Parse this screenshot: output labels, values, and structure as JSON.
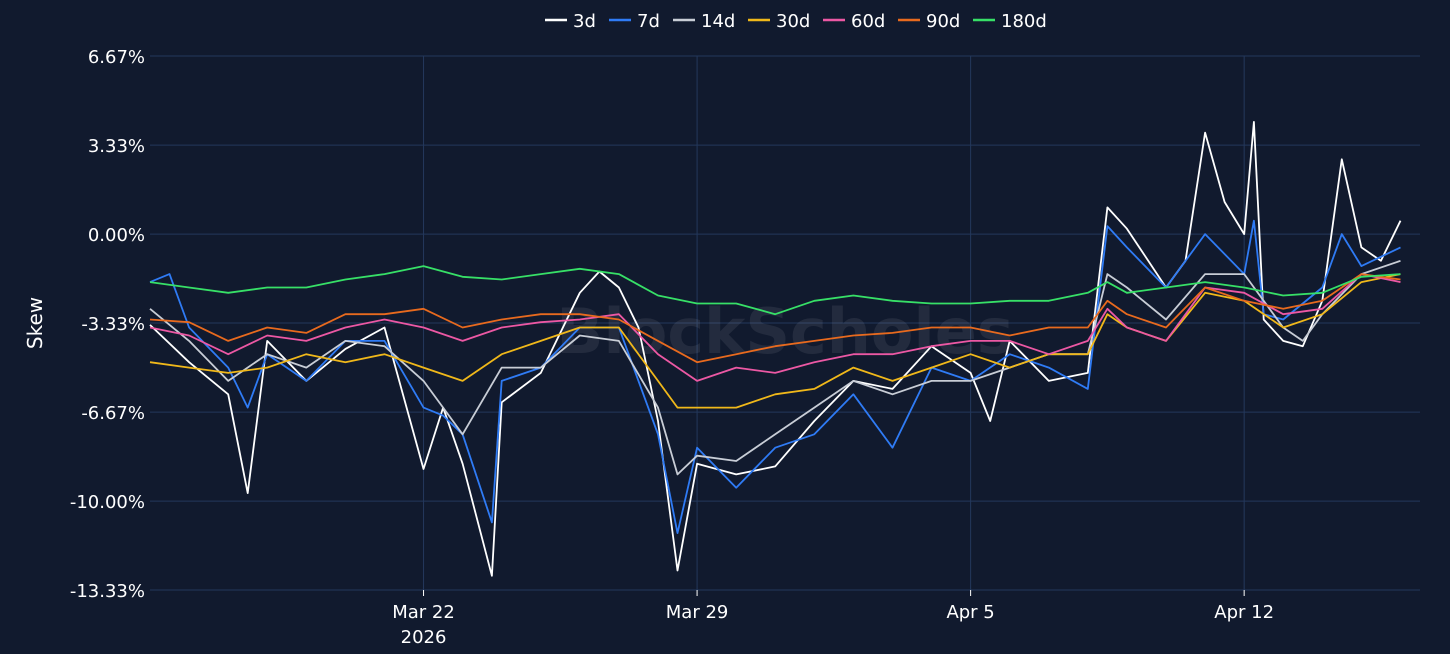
{
  "chart_data": {
    "type": "line",
    "title": "",
    "ylabel": "Skew",
    "xlabel": "",
    "ylim": [
      -13.33,
      6.67
    ],
    "y_ticks": [
      6.67,
      3.33,
      0.0,
      -3.33,
      -6.67,
      -10.0,
      -13.33
    ],
    "y_tick_labels": [
      "6.67%",
      "3.33%",
      "0.00%",
      "-3.33%",
      "-6.67%",
      "-10.00%",
      "-13.33%"
    ],
    "x_range": [
      "2026-03-15",
      "2026-04-16"
    ],
    "x_ticks": [
      {
        "date": "2026-03-22",
        "label": "Mar 22",
        "sublabel": "2026"
      },
      {
        "date": "2026-03-29",
        "label": "Mar 29",
        "sublabel": ""
      },
      {
        "date": "2026-04-05",
        "label": "Apr 5",
        "sublabel": ""
      },
      {
        "date": "2026-04-12",
        "label": "Apr 12",
        "sublabel": ""
      }
    ],
    "grid": true,
    "legend_position": "top-center",
    "watermark": "BlockScholes",
    "colors": {
      "background": "#111a2e",
      "grid": "#24385c",
      "text": "#ffffff"
    },
    "series": [
      {
        "name": "3d",
        "color": "#ffffff",
        "points": [
          [
            "2026-03-15",
            -3.4
          ],
          [
            "2026-03-16",
            -4.8
          ],
          [
            "2026-03-17",
            -6.0
          ],
          [
            "2026-03-17T12:00",
            -9.7
          ],
          [
            "2026-03-18",
            -4.0
          ],
          [
            "2026-03-19",
            -5.5
          ],
          [
            "2026-03-20",
            -4.3
          ],
          [
            "2026-03-21",
            -3.5
          ],
          [
            "2026-03-22",
            -8.8
          ],
          [
            "2026-03-22T12:00",
            -6.5
          ],
          [
            "2026-03-23",
            -8.6
          ],
          [
            "2026-03-23T18:00",
            -12.8
          ],
          [
            "2026-03-24",
            -6.3
          ],
          [
            "2026-03-25",
            -5.2
          ],
          [
            "2026-03-26",
            -2.2
          ],
          [
            "2026-03-26T12:00",
            -1.4
          ],
          [
            "2026-03-27",
            -2.0
          ],
          [
            "2026-03-27T12:00",
            -3.5
          ],
          [
            "2026-03-28",
            -7.0
          ],
          [
            "2026-03-28T12:00",
            -12.6
          ],
          [
            "2026-03-29",
            -8.6
          ],
          [
            "2026-03-30",
            -9.0
          ],
          [
            "2026-03-31",
            -8.7
          ],
          [
            "2026-04-01",
            -7.0
          ],
          [
            "2026-04-02",
            -5.5
          ],
          [
            "2026-04-03",
            -5.8
          ],
          [
            "2026-04-04",
            -4.2
          ],
          [
            "2026-04-05",
            -5.2
          ],
          [
            "2026-04-05T12:00",
            -7.0
          ],
          [
            "2026-04-06",
            -4.0
          ],
          [
            "2026-04-07",
            -5.5
          ],
          [
            "2026-04-08",
            -5.2
          ],
          [
            "2026-04-08T12:00",
            1.0
          ],
          [
            "2026-04-09",
            0.2
          ],
          [
            "2026-04-10",
            -2.0
          ],
          [
            "2026-04-10T12:00",
            -1.0
          ],
          [
            "2026-04-11",
            3.8
          ],
          [
            "2026-04-11T12:00",
            1.2
          ],
          [
            "2026-04-12",
            0.0
          ],
          [
            "2026-04-12T06:00",
            4.2
          ],
          [
            "2026-04-12T12:00",
            -3.2
          ],
          [
            "2026-04-13",
            -4.0
          ],
          [
            "2026-04-13T12:00",
            -4.2
          ],
          [
            "2026-04-14",
            -2.5
          ],
          [
            "2026-04-14T12:00",
            2.8
          ],
          [
            "2026-04-15",
            -0.5
          ],
          [
            "2026-04-15T12:00",
            -1.0
          ],
          [
            "2026-04-16",
            0.5
          ]
        ]
      },
      {
        "name": "7d",
        "color": "#2f7bf5",
        "points": [
          [
            "2026-03-15",
            -1.8
          ],
          [
            "2026-03-15T12:00",
            -1.5
          ],
          [
            "2026-03-16",
            -3.5
          ],
          [
            "2026-03-17",
            -5.0
          ],
          [
            "2026-03-17T12:00",
            -6.5
          ],
          [
            "2026-03-18",
            -4.5
          ],
          [
            "2026-03-19",
            -5.5
          ],
          [
            "2026-03-20",
            -4.0
          ],
          [
            "2026-03-21",
            -4.0
          ],
          [
            "2026-03-22",
            -6.5
          ],
          [
            "2026-03-22T12:00",
            -6.8
          ],
          [
            "2026-03-23",
            -7.5
          ],
          [
            "2026-03-23T18:00",
            -10.8
          ],
          [
            "2026-03-24",
            -5.5
          ],
          [
            "2026-03-25",
            -5.0
          ],
          [
            "2026-03-26",
            -3.5
          ],
          [
            "2026-03-27",
            -3.5
          ],
          [
            "2026-03-28",
            -7.5
          ],
          [
            "2026-03-28T12:00",
            -11.2
          ],
          [
            "2026-03-29",
            -8.0
          ],
          [
            "2026-03-30",
            -9.5
          ],
          [
            "2026-03-31",
            -8.0
          ],
          [
            "2026-04-01",
            -7.5
          ],
          [
            "2026-04-02",
            -6.0
          ],
          [
            "2026-04-03",
            -8.0
          ],
          [
            "2026-04-04",
            -5.0
          ],
          [
            "2026-04-05",
            -5.5
          ],
          [
            "2026-04-06",
            -4.5
          ],
          [
            "2026-04-07",
            -5.0
          ],
          [
            "2026-04-08",
            -5.8
          ],
          [
            "2026-04-08T12:00",
            0.3
          ],
          [
            "2026-04-09",
            -0.5
          ],
          [
            "2026-04-10",
            -2.0
          ],
          [
            "2026-04-11",
            0.0
          ],
          [
            "2026-04-12",
            -1.5
          ],
          [
            "2026-04-12T06:00",
            0.5
          ],
          [
            "2026-04-12T12:00",
            -3.0
          ],
          [
            "2026-04-13",
            -3.2
          ],
          [
            "2026-04-14",
            -2.0
          ],
          [
            "2026-04-14T12:00",
            0.0
          ],
          [
            "2026-04-15",
            -1.2
          ],
          [
            "2026-04-16",
            -0.5
          ]
        ]
      },
      {
        "name": "14d",
        "color": "#c8cdd6",
        "points": [
          [
            "2026-03-15",
            -2.8
          ],
          [
            "2026-03-16",
            -4.0
          ],
          [
            "2026-03-17",
            -5.5
          ],
          [
            "2026-03-18",
            -4.5
          ],
          [
            "2026-03-19",
            -5.0
          ],
          [
            "2026-03-20",
            -4.0
          ],
          [
            "2026-03-21",
            -4.2
          ],
          [
            "2026-03-22",
            -5.5
          ],
          [
            "2026-03-22T12:00",
            -6.5
          ],
          [
            "2026-03-23",
            -7.5
          ],
          [
            "2026-03-24",
            -5.0
          ],
          [
            "2026-03-25",
            -5.0
          ],
          [
            "2026-03-26",
            -3.8
          ],
          [
            "2026-03-27",
            -4.0
          ],
          [
            "2026-03-28",
            -6.5
          ],
          [
            "2026-03-28T12:00",
            -9.0
          ],
          [
            "2026-03-29",
            -8.3
          ],
          [
            "2026-03-30",
            -8.5
          ],
          [
            "2026-03-31",
            -7.5
          ],
          [
            "2026-04-01",
            -6.5
          ],
          [
            "2026-04-02",
            -5.5
          ],
          [
            "2026-04-03",
            -6.0
          ],
          [
            "2026-04-04",
            -5.5
          ],
          [
            "2026-04-05",
            -5.5
          ],
          [
            "2026-04-06",
            -5.0
          ],
          [
            "2026-04-07",
            -4.5
          ],
          [
            "2026-04-08",
            -4.5
          ],
          [
            "2026-04-08T12:00",
            -1.5
          ],
          [
            "2026-04-09",
            -2.0
          ],
          [
            "2026-04-10",
            -3.2
          ],
          [
            "2026-04-11",
            -1.5
          ],
          [
            "2026-04-12",
            -1.5
          ],
          [
            "2026-04-13",
            -3.5
          ],
          [
            "2026-04-13T12:00",
            -4.0
          ],
          [
            "2026-04-14",
            -3.0
          ],
          [
            "2026-04-15",
            -1.5
          ],
          [
            "2026-04-16",
            -1.0
          ]
        ]
      },
      {
        "name": "30d",
        "color": "#f0b81a",
        "points": [
          [
            "2026-03-15",
            -4.8
          ],
          [
            "2026-03-16",
            -5.0
          ],
          [
            "2026-03-17",
            -5.2
          ],
          [
            "2026-03-18",
            -5.0
          ],
          [
            "2026-03-19",
            -4.5
          ],
          [
            "2026-03-20",
            -4.8
          ],
          [
            "2026-03-21",
            -4.5
          ],
          [
            "2026-03-22",
            -5.0
          ],
          [
            "2026-03-23",
            -5.5
          ],
          [
            "2026-03-24",
            -4.5
          ],
          [
            "2026-03-25",
            -4.0
          ],
          [
            "2026-03-26",
            -3.5
          ],
          [
            "2026-03-27",
            -3.5
          ],
          [
            "2026-03-28",
            -5.5
          ],
          [
            "2026-03-28T12:00",
            -6.5
          ],
          [
            "2026-03-29",
            -6.5
          ],
          [
            "2026-03-30",
            -6.5
          ],
          [
            "2026-03-31",
            -6.0
          ],
          [
            "2026-04-01",
            -5.8
          ],
          [
            "2026-04-02",
            -5.0
          ],
          [
            "2026-04-03",
            -5.5
          ],
          [
            "2026-04-04",
            -5.0
          ],
          [
            "2026-04-05",
            -4.5
          ],
          [
            "2026-04-06",
            -5.0
          ],
          [
            "2026-04-07",
            -4.5
          ],
          [
            "2026-04-08",
            -4.5
          ],
          [
            "2026-04-08T12:00",
            -3.0
          ],
          [
            "2026-04-09",
            -3.5
          ],
          [
            "2026-04-10",
            -4.0
          ],
          [
            "2026-04-11",
            -2.2
          ],
          [
            "2026-04-12",
            -2.5
          ],
          [
            "2026-04-13",
            -3.5
          ],
          [
            "2026-04-14",
            -3.0
          ],
          [
            "2026-04-15",
            -1.8
          ],
          [
            "2026-04-16",
            -1.5
          ]
        ]
      },
      {
        "name": "60d",
        "color": "#ec58a4",
        "points": [
          [
            "2026-03-15",
            -3.5
          ],
          [
            "2026-03-16",
            -3.8
          ],
          [
            "2026-03-17",
            -4.5
          ],
          [
            "2026-03-18",
            -3.8
          ],
          [
            "2026-03-19",
            -4.0
          ],
          [
            "2026-03-20",
            -3.5
          ],
          [
            "2026-03-21",
            -3.2
          ],
          [
            "2026-03-22",
            -3.5
          ],
          [
            "2026-03-23",
            -4.0
          ],
          [
            "2026-03-24",
            -3.5
          ],
          [
            "2026-03-25",
            -3.3
          ],
          [
            "2026-03-26",
            -3.2
          ],
          [
            "2026-03-27",
            -3.0
          ],
          [
            "2026-03-28",
            -4.5
          ],
          [
            "2026-03-29",
            -5.5
          ],
          [
            "2026-03-30",
            -5.0
          ],
          [
            "2026-03-31",
            -5.2
          ],
          [
            "2026-04-01",
            -4.8
          ],
          [
            "2026-04-02",
            -4.5
          ],
          [
            "2026-04-03",
            -4.5
          ],
          [
            "2026-04-04",
            -4.2
          ],
          [
            "2026-04-05",
            -4.0
          ],
          [
            "2026-04-06",
            -4.0
          ],
          [
            "2026-04-07",
            -4.5
          ],
          [
            "2026-04-08",
            -4.0
          ],
          [
            "2026-04-08T12:00",
            -2.8
          ],
          [
            "2026-04-09",
            -3.5
          ],
          [
            "2026-04-10",
            -4.0
          ],
          [
            "2026-04-11",
            -2.0
          ],
          [
            "2026-04-12",
            -2.2
          ],
          [
            "2026-04-13",
            -3.0
          ],
          [
            "2026-04-14",
            -2.8
          ],
          [
            "2026-04-15",
            -1.5
          ],
          [
            "2026-04-16",
            -1.8
          ]
        ]
      },
      {
        "name": "90d",
        "color": "#e86a1e",
        "points": [
          [
            "2026-03-15",
            -3.2
          ],
          [
            "2026-03-16",
            -3.3
          ],
          [
            "2026-03-17",
            -4.0
          ],
          [
            "2026-03-18",
            -3.5
          ],
          [
            "2026-03-19",
            -3.7
          ],
          [
            "2026-03-20",
            -3.0
          ],
          [
            "2026-03-21",
            -3.0
          ],
          [
            "2026-03-22",
            -2.8
          ],
          [
            "2026-03-23",
            -3.5
          ],
          [
            "2026-03-24",
            -3.2
          ],
          [
            "2026-03-25",
            -3.0
          ],
          [
            "2026-03-26",
            -3.0
          ],
          [
            "2026-03-27",
            -3.2
          ],
          [
            "2026-03-28",
            -4.0
          ],
          [
            "2026-03-29",
            -4.8
          ],
          [
            "2026-03-30",
            -4.5
          ],
          [
            "2026-03-31",
            -4.2
          ],
          [
            "2026-04-01",
            -4.0
          ],
          [
            "2026-04-02",
            -3.8
          ],
          [
            "2026-04-03",
            -3.7
          ],
          [
            "2026-04-04",
            -3.5
          ],
          [
            "2026-04-05",
            -3.5
          ],
          [
            "2026-04-06",
            -3.8
          ],
          [
            "2026-04-07",
            -3.5
          ],
          [
            "2026-04-08",
            -3.5
          ],
          [
            "2026-04-08T12:00",
            -2.5
          ],
          [
            "2026-04-09",
            -3.0
          ],
          [
            "2026-04-10",
            -3.5
          ],
          [
            "2026-04-11",
            -2.0
          ],
          [
            "2026-04-12",
            -2.5
          ],
          [
            "2026-04-13",
            -2.8
          ],
          [
            "2026-04-14",
            -2.5
          ],
          [
            "2026-04-15",
            -1.5
          ],
          [
            "2026-04-16",
            -1.7
          ]
        ]
      },
      {
        "name": "180d",
        "color": "#37e067",
        "points": [
          [
            "2026-03-15",
            -1.8
          ],
          [
            "2026-03-16",
            -2.0
          ],
          [
            "2026-03-17",
            -2.2
          ],
          [
            "2026-03-18",
            -2.0
          ],
          [
            "2026-03-19",
            -2.0
          ],
          [
            "2026-03-20",
            -1.7
          ],
          [
            "2026-03-21",
            -1.5
          ],
          [
            "2026-03-22",
            -1.2
          ],
          [
            "2026-03-23",
            -1.6
          ],
          [
            "2026-03-24",
            -1.7
          ],
          [
            "2026-03-25",
            -1.5
          ],
          [
            "2026-03-26",
            -1.3
          ],
          [
            "2026-03-27",
            -1.5
          ],
          [
            "2026-03-28",
            -2.3
          ],
          [
            "2026-03-29",
            -2.6
          ],
          [
            "2026-03-30",
            -2.6
          ],
          [
            "2026-03-31",
            -3.0
          ],
          [
            "2026-04-01",
            -2.5
          ],
          [
            "2026-04-02",
            -2.3
          ],
          [
            "2026-04-03",
            -2.5
          ],
          [
            "2026-04-04",
            -2.6
          ],
          [
            "2026-04-05",
            -2.6
          ],
          [
            "2026-04-06",
            -2.5
          ],
          [
            "2026-04-07",
            -2.5
          ],
          [
            "2026-04-08",
            -2.2
          ],
          [
            "2026-04-08T12:00",
            -1.8
          ],
          [
            "2026-04-09",
            -2.2
          ],
          [
            "2026-04-10",
            -2.0
          ],
          [
            "2026-04-11",
            -1.8
          ],
          [
            "2026-04-12",
            -2.0
          ],
          [
            "2026-04-13",
            -2.3
          ],
          [
            "2026-04-14",
            -2.2
          ],
          [
            "2026-04-15",
            -1.6
          ],
          [
            "2026-04-16",
            -1.5
          ]
        ]
      }
    ]
  }
}
